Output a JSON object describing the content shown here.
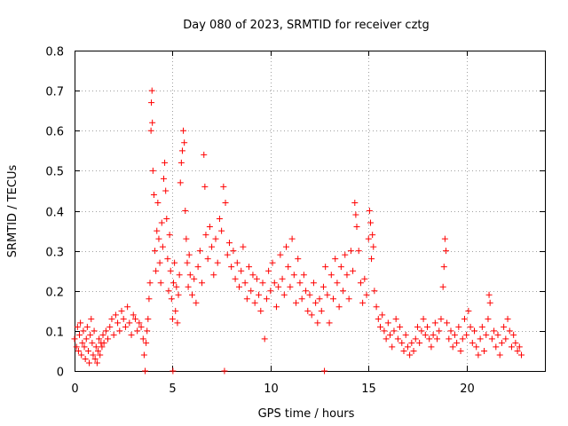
{
  "chart_data": {
    "type": "scatter",
    "title": "Day 080 of 2023, SRMTID for receiver cztg",
    "xlabel": "GPS time / hours",
    "ylabel": "SRMTID / TECUs",
    "xlim": [
      0,
      24
    ],
    "ylim": [
      0,
      0.8
    ],
    "xticks": [
      0,
      5,
      10,
      15,
      20
    ],
    "yticks": [
      0,
      0.1,
      0.2,
      0.3,
      0.4,
      0.5,
      0.6,
      0.7,
      0.8
    ],
    "ytick_labels": [
      "0",
      "0.1",
      "0.2",
      "0.3",
      "0.4",
      "0.5",
      "0.6",
      "0.7",
      "0.8"
    ],
    "marker": "+",
    "grid": true,
    "series": [
      {
        "name": "SRMTID",
        "color": "#ff0000",
        "points": [
          [
            0.0,
            0.08
          ],
          [
            0.1,
            0.06
          ],
          [
            0.15,
            0.11
          ],
          [
            0.2,
            0.05
          ],
          [
            0.25,
            0.09
          ],
          [
            0.3,
            0.12
          ],
          [
            0.35,
            0.04
          ],
          [
            0.4,
            0.07
          ],
          [
            0.45,
            0.1
          ],
          [
            0.5,
            0.06
          ],
          [
            0.55,
            0.03
          ],
          [
            0.6,
            0.08
          ],
          [
            0.65,
            0.11
          ],
          [
            0.7,
            0.05
          ],
          [
            0.75,
            0.02
          ],
          [
            0.8,
            0.09
          ],
          [
            0.85,
            0.13
          ],
          [
            0.9,
            0.07
          ],
          [
            0.95,
            0.04
          ],
          [
            1.0,
            0.1
          ],
          [
            1.05,
            0.03
          ],
          [
            1.1,
            0.06
          ],
          [
            1.15,
            0.02
          ],
          [
            1.2,
            0.05
          ],
          [
            1.25,
            0.08
          ],
          [
            1.3,
            0.04
          ],
          [
            1.35,
            0.07
          ],
          [
            1.4,
            0.06
          ],
          [
            1.45,
            0.09
          ],
          [
            1.5,
            0.07
          ],
          [
            1.6,
            0.1
          ],
          [
            1.7,
            0.08
          ],
          [
            1.8,
            0.11
          ],
          [
            1.9,
            0.13
          ],
          [
            2.0,
            0.09
          ],
          [
            2.1,
            0.14
          ],
          [
            2.2,
            0.12
          ],
          [
            2.3,
            0.1
          ],
          [
            2.4,
            0.15
          ],
          [
            2.5,
            0.13
          ],
          [
            2.6,
            0.11
          ],
          [
            2.7,
            0.16
          ],
          [
            2.8,
            0.12
          ],
          [
            2.9,
            0.09
          ],
          [
            3.0,
            0.14
          ],
          [
            3.1,
            0.13
          ],
          [
            3.2,
            0.1
          ],
          [
            3.3,
            0.12
          ],
          [
            3.4,
            0.11
          ],
          [
            3.5,
            0.08
          ],
          [
            3.55,
            0.04
          ],
          [
            3.6,
            0.0
          ],
          [
            3.65,
            0.07
          ],
          [
            3.7,
            0.1
          ],
          [
            3.75,
            0.13
          ],
          [
            3.8,
            0.18
          ],
          [
            3.85,
            0.22
          ],
          [
            3.9,
            0.6
          ],
          [
            3.92,
            0.67
          ],
          [
            3.95,
            0.7
          ],
          [
            3.97,
            0.62
          ],
          [
            4.0,
            0.5
          ],
          [
            4.05,
            0.44
          ],
          [
            4.1,
            0.3
          ],
          [
            4.15,
            0.25
          ],
          [
            4.2,
            0.35
          ],
          [
            4.25,
            0.42
          ],
          [
            4.3,
            0.33
          ],
          [
            4.35,
            0.27
          ],
          [
            4.4,
            0.22
          ],
          [
            4.45,
            0.37
          ],
          [
            4.5,
            0.31
          ],
          [
            4.55,
            0.48
          ],
          [
            4.6,
            0.52
          ],
          [
            4.65,
            0.45
          ],
          [
            4.7,
            0.38
          ],
          [
            4.75,
            0.28
          ],
          [
            4.8,
            0.2
          ],
          [
            4.85,
            0.34
          ],
          [
            4.9,
            0.25
          ],
          [
            4.95,
            0.18
          ],
          [
            5.0,
            0.13
          ],
          [
            5.02,
            0.0
          ],
          [
            5.05,
            0.22
          ],
          [
            5.1,
            0.27
          ],
          [
            5.15,
            0.15
          ],
          [
            5.2,
            0.21
          ],
          [
            5.25,
            0.12
          ],
          [
            5.3,
            0.19
          ],
          [
            5.35,
            0.24
          ],
          [
            5.4,
            0.47
          ],
          [
            5.45,
            0.52
          ],
          [
            5.5,
            0.55
          ],
          [
            5.55,
            0.6
          ],
          [
            5.6,
            0.57
          ],
          [
            5.65,
            0.4
          ],
          [
            5.7,
            0.33
          ],
          [
            5.75,
            0.27
          ],
          [
            5.8,
            0.21
          ],
          [
            5.85,
            0.29
          ],
          [
            5.9,
            0.24
          ],
          [
            6.0,
            0.19
          ],
          [
            6.1,
            0.23
          ],
          [
            6.2,
            0.17
          ],
          [
            6.3,
            0.26
          ],
          [
            6.4,
            0.3
          ],
          [
            6.5,
            0.22
          ],
          [
            6.6,
            0.54
          ],
          [
            6.65,
            0.46
          ],
          [
            6.7,
            0.34
          ],
          [
            6.8,
            0.28
          ],
          [
            6.9,
            0.36
          ],
          [
            7.0,
            0.31
          ],
          [
            7.1,
            0.24
          ],
          [
            7.2,
            0.33
          ],
          [
            7.3,
            0.27
          ],
          [
            7.4,
            0.38
          ],
          [
            7.5,
            0.35
          ],
          [
            7.6,
            0.46
          ],
          [
            7.65,
            0.0
          ],
          [
            7.7,
            0.42
          ],
          [
            7.8,
            0.29
          ],
          [
            7.9,
            0.32
          ],
          [
            8.0,
            0.26
          ],
          [
            8.1,
            0.3
          ],
          [
            8.2,
            0.23
          ],
          [
            8.3,
            0.27
          ],
          [
            8.4,
            0.21
          ],
          [
            8.5,
            0.25
          ],
          [
            8.6,
            0.31
          ],
          [
            8.7,
            0.22
          ],
          [
            8.8,
            0.18
          ],
          [
            8.9,
            0.26
          ],
          [
            9.0,
            0.2
          ],
          [
            9.1,
            0.24
          ],
          [
            9.2,
            0.17
          ],
          [
            9.3,
            0.23
          ],
          [
            9.4,
            0.19
          ],
          [
            9.5,
            0.15
          ],
          [
            9.6,
            0.22
          ],
          [
            9.7,
            0.08
          ],
          [
            9.8,
            0.18
          ],
          [
            9.9,
            0.25
          ],
          [
            10.0,
            0.2
          ],
          [
            10.1,
            0.27
          ],
          [
            10.2,
            0.22
          ],
          [
            10.3,
            0.16
          ],
          [
            10.4,
            0.21
          ],
          [
            10.5,
            0.29
          ],
          [
            10.6,
            0.23
          ],
          [
            10.7,
            0.19
          ],
          [
            10.8,
            0.31
          ],
          [
            10.9,
            0.26
          ],
          [
            11.0,
            0.21
          ],
          [
            11.1,
            0.33
          ],
          [
            11.2,
            0.24
          ],
          [
            11.3,
            0.17
          ],
          [
            11.4,
            0.28
          ],
          [
            11.5,
            0.22
          ],
          [
            11.6,
            0.18
          ],
          [
            11.7,
            0.24
          ],
          [
            11.8,
            0.2
          ],
          [
            11.9,
            0.15
          ],
          [
            12.0,
            0.19
          ],
          [
            12.1,
            0.14
          ],
          [
            12.2,
            0.22
          ],
          [
            12.3,
            0.17
          ],
          [
            12.4,
            0.12
          ],
          [
            12.5,
            0.18
          ],
          [
            12.6,
            0.15
          ],
          [
            12.7,
            0.21
          ],
          [
            12.75,
            0.0
          ],
          [
            12.8,
            0.26
          ],
          [
            12.9,
            0.19
          ],
          [
            13.0,
            0.12
          ],
          [
            13.1,
            0.24
          ],
          [
            13.2,
            0.18
          ],
          [
            13.3,
            0.28
          ],
          [
            13.4,
            0.22
          ],
          [
            13.5,
            0.16
          ],
          [
            13.6,
            0.26
          ],
          [
            13.7,
            0.2
          ],
          [
            13.8,
            0.29
          ],
          [
            13.9,
            0.24
          ],
          [
            14.0,
            0.18
          ],
          [
            14.1,
            0.3
          ],
          [
            14.2,
            0.25
          ],
          [
            14.3,
            0.42
          ],
          [
            14.35,
            0.39
          ],
          [
            14.4,
            0.36
          ],
          [
            14.5,
            0.3
          ],
          [
            14.6,
            0.22
          ],
          [
            14.7,
            0.17
          ],
          [
            14.8,
            0.23
          ],
          [
            14.9,
            0.19
          ],
          [
            15.0,
            0.33
          ],
          [
            15.05,
            0.4
          ],
          [
            15.1,
            0.37
          ],
          [
            15.15,
            0.28
          ],
          [
            15.2,
            0.34
          ],
          [
            15.25,
            0.31
          ],
          [
            15.3,
            0.2
          ],
          [
            15.4,
            0.16
          ],
          [
            15.5,
            0.13
          ],
          [
            15.6,
            0.11
          ],
          [
            15.7,
            0.14
          ],
          [
            15.8,
            0.1
          ],
          [
            15.9,
            0.08
          ],
          [
            16.0,
            0.12
          ],
          [
            16.1,
            0.09
          ],
          [
            16.2,
            0.06
          ],
          [
            16.3,
            0.1
          ],
          [
            16.4,
            0.13
          ],
          [
            16.5,
            0.08
          ],
          [
            16.6,
            0.11
          ],
          [
            16.7,
            0.07
          ],
          [
            16.8,
            0.05
          ],
          [
            16.9,
            0.09
          ],
          [
            17.0,
            0.06
          ],
          [
            17.1,
            0.04
          ],
          [
            17.2,
            0.07
          ],
          [
            17.3,
            0.05
          ],
          [
            17.4,
            0.08
          ],
          [
            17.5,
            0.11
          ],
          [
            17.6,
            0.07
          ],
          [
            17.7,
            0.1
          ],
          [
            17.8,
            0.13
          ],
          [
            17.9,
            0.09
          ],
          [
            18.0,
            0.11
          ],
          [
            18.1,
            0.08
          ],
          [
            18.2,
            0.06
          ],
          [
            18.3,
            0.09
          ],
          [
            18.4,
            0.12
          ],
          [
            18.5,
            0.08
          ],
          [
            18.6,
            0.1
          ],
          [
            18.7,
            0.13
          ],
          [
            18.8,
            0.21
          ],
          [
            18.85,
            0.26
          ],
          [
            18.9,
            0.33
          ],
          [
            18.95,
            0.3
          ],
          [
            19.0,
            0.12
          ],
          [
            19.1,
            0.08
          ],
          [
            19.2,
            0.1
          ],
          [
            19.3,
            0.06
          ],
          [
            19.4,
            0.09
          ],
          [
            19.5,
            0.07
          ],
          [
            19.6,
            0.11
          ],
          [
            19.7,
            0.05
          ],
          [
            19.8,
            0.08
          ],
          [
            19.9,
            0.13
          ],
          [
            20.0,
            0.09
          ],
          [
            20.1,
            0.15
          ],
          [
            20.2,
            0.11
          ],
          [
            20.3,
            0.07
          ],
          [
            20.4,
            0.1
          ],
          [
            20.5,
            0.06
          ],
          [
            20.6,
            0.04
          ],
          [
            20.7,
            0.08
          ],
          [
            20.8,
            0.11
          ],
          [
            20.9,
            0.05
          ],
          [
            21.0,
            0.09
          ],
          [
            21.1,
            0.13
          ],
          [
            21.15,
            0.19
          ],
          [
            21.2,
            0.17
          ],
          [
            21.3,
            0.08
          ],
          [
            21.4,
            0.1
          ],
          [
            21.5,
            0.06
          ],
          [
            21.6,
            0.09
          ],
          [
            21.7,
            0.04
          ],
          [
            21.8,
            0.07
          ],
          [
            21.9,
            0.11
          ],
          [
            22.0,
            0.08
          ],
          [
            22.1,
            0.13
          ],
          [
            22.2,
            0.1
          ],
          [
            22.3,
            0.06
          ],
          [
            22.4,
            0.09
          ],
          [
            22.5,
            0.07
          ],
          [
            22.6,
            0.05
          ],
          [
            22.7,
            0.06
          ],
          [
            22.8,
            0.04
          ]
        ]
      }
    ]
  }
}
